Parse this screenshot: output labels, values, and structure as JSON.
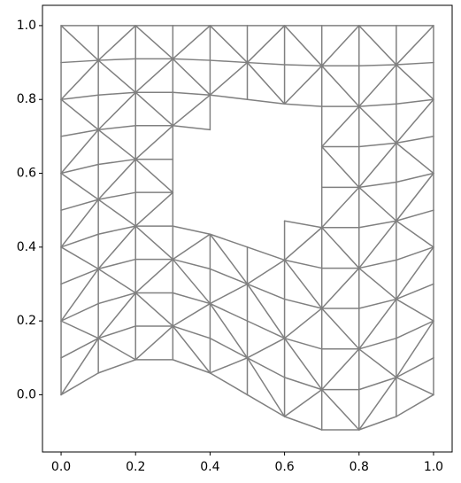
{
  "chart_data": {
    "type": "triplot",
    "color": "#808080",
    "x": [
      0,
      0.1,
      0.2,
      0.3,
      0.4,
      0.5,
      0.6,
      0.7,
      0.8,
      0.9,
      1
    ],
    "y": [
      [
        0,
        0.1,
        0.2,
        0.3,
        0.4,
        0.5,
        0.6,
        0.7,
        0.8,
        0.9,
        1
      ],
      [
        0.059,
        0.153,
        0.247,
        0.341,
        0.435,
        0.529,
        0.624,
        0.718,
        0.812,
        0.906,
        1
      ],
      [
        0.095,
        0.186,
        0.276,
        0.367,
        0.457,
        0.548,
        0.638,
        0.729,
        0.819,
        0.91,
        1
      ],
      [
        0.095,
        0.186,
        0.276,
        0.367,
        0.457,
        0.548,
        0.638,
        0.729,
        0.819,
        0.91,
        1
      ],
      [
        0.059,
        0.153,
        0.247,
        0.341,
        0.435,
        0.529,
        0.624,
        0.718,
        0.812,
        0.906,
        1
      ],
      [
        0,
        0.1,
        0.2,
        0.3,
        0.4,
        0.5,
        0.6,
        0.7,
        0.8,
        0.9,
        1
      ],
      [
        -0.059,
        0.047,
        0.153,
        0.259,
        0.365,
        0.471,
        0.576,
        0.682,
        0.788,
        0.894,
        1
      ],
      [
        -0.095,
        0.014,
        0.124,
        0.234,
        0.343,
        0.453,
        0.562,
        0.672,
        0.781,
        0.891,
        1
      ],
      [
        -0.095,
        0.014,
        0.124,
        0.234,
        0.343,
        0.453,
        0.562,
        0.672,
        0.781,
        0.891,
        1
      ],
      [
        -0.059,
        0.047,
        0.153,
        0.259,
        0.365,
        0.471,
        0.576,
        0.682,
        0.788,
        0.894,
        1
      ],
      [
        0,
        0.1,
        0.2,
        0.3,
        0.4,
        0.5,
        0.6,
        0.7,
        0.8,
        0.9,
        1
      ]
    ],
    "masked_cells": [
      [
        3,
        4
      ],
      [
        3,
        5
      ],
      [
        3,
        6
      ],
      [
        4,
        4
      ],
      [
        4,
        5
      ],
      [
        4,
        6
      ],
      [
        4,
        7
      ],
      [
        5,
        4
      ],
      [
        5,
        5
      ],
      [
        5,
        6
      ],
      [
        5,
        7
      ],
      [
        6,
        5
      ],
      [
        6,
        6
      ],
      [
        6,
        7
      ]
    ],
    "xlim": [
      -0.05,
      1.05
    ],
    "ylim": [
      -0.155,
      1.055
    ],
    "xticks": [
      {
        "value": 0,
        "label": "0.0"
      },
      {
        "value": 0.2,
        "label": "0.2"
      },
      {
        "value": 0.4,
        "label": "0.4"
      },
      {
        "value": 0.6,
        "label": "0.6"
      },
      {
        "value": 0.8,
        "label": "0.8"
      },
      {
        "value": 1,
        "label": "1.0"
      }
    ],
    "yticks": [
      {
        "value": 0,
        "label": "0.0"
      },
      {
        "value": 0.2,
        "label": "0.2"
      },
      {
        "value": 0.4,
        "label": "0.4"
      },
      {
        "value": 0.6,
        "label": "0.6"
      },
      {
        "value": 0.8,
        "label": "0.8"
      },
      {
        "value": 1,
        "label": "1.0"
      }
    ]
  }
}
